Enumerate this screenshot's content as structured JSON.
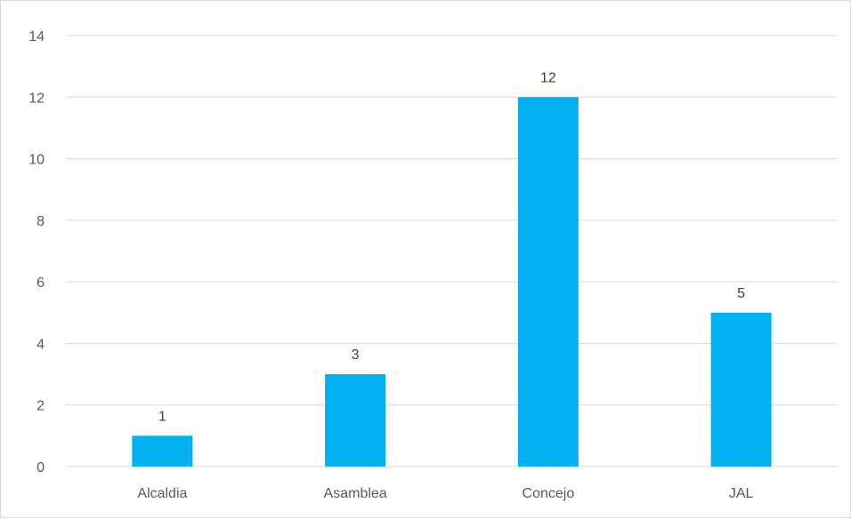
{
  "chart_data": {
    "type": "bar",
    "categories": [
      "Alcaldia",
      "Asamblea",
      "Concejo",
      "JAL"
    ],
    "values": [
      1,
      3,
      12,
      5
    ],
    "data_labels": [
      "1",
      "3",
      "12",
      "5"
    ],
    "ylim": [
      0,
      14
    ],
    "yticks": [
      0,
      2,
      4,
      6,
      8,
      10,
      12,
      14
    ],
    "grid": true,
    "bar_color": "#00b0f0",
    "grid_color": "#d9d9d9",
    "title": "",
    "xlabel": "",
    "ylabel": ""
  }
}
